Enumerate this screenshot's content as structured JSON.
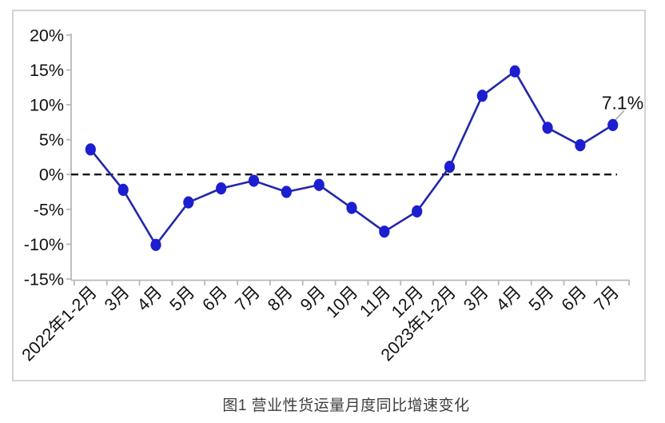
{
  "caption": "图1 营业性货运量月度同比增速变化",
  "chart_data": {
    "type": "line",
    "title": "图1 营业性货运量月度同比增速变化",
    "categories": [
      "2022年1-2月",
      "3月",
      "4月",
      "5月",
      "6月",
      "7月",
      "8月",
      "9月",
      "10月",
      "11月",
      "12月",
      "2023年1-2月",
      "3月",
      "4月",
      "5月",
      "6月",
      "7月"
    ],
    "values": [
      3.6,
      -2.2,
      -10.1,
      -4.0,
      -2.0,
      -0.9,
      -2.5,
      -1.5,
      -4.8,
      -8.2,
      -5.3,
      1.1,
      11.3,
      14.8,
      6.7,
      4.2,
      7.1
    ],
    "series_name": "营业性货运量月度同比增速",
    "xlabel": "",
    "ylabel": "",
    "ylim": [
      -15,
      20
    ],
    "y_ticks": [
      20,
      15,
      10,
      5,
      0,
      -5,
      -10,
      -15
    ],
    "ytick_suffix": "%",
    "grid": false,
    "legend": false,
    "zero_reference_line": "dashed",
    "annotation": {
      "point_index": 16,
      "text": "7.1%"
    },
    "colors": {
      "line": "#2326a8",
      "marker": "#1c1ed0",
      "axis": "#b9b9b9",
      "dashed_zero_line": "#111111",
      "tick_text": "#111111",
      "annotation_text": "#111111",
      "annotation_leader": "#a9a9a9",
      "frame_border": "#d4d4d4",
      "caption_text": "#3d3d3d"
    }
  }
}
